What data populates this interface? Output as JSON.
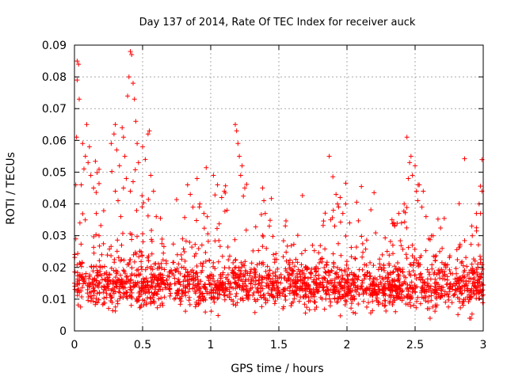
{
  "chart_data": {
    "type": "scatter",
    "title": "Day 137 of 2014, Rate Of TEC Index for receiver auck",
    "xlabel": "GPS time / hours",
    "ylabel": "ROTI / TECUs",
    "xlim": [
      0,
      3
    ],
    "ylim": [
      0,
      0.09
    ],
    "x_ticks": [
      0,
      0.5,
      1,
      1.5,
      2,
      2.5,
      3
    ],
    "x_tick_labels": [
      "0",
      "0.5",
      "1",
      "1.5",
      "2",
      "2.5",
      "3"
    ],
    "y_ticks": [
      0,
      0.01,
      0.02,
      0.03,
      0.04,
      0.05,
      0.06,
      0.07,
      0.08,
      0.09
    ],
    "y_tick_labels": [
      "0",
      "0.01",
      "0.02",
      "0.03",
      "0.04",
      "0.05",
      "0.06",
      "0.07",
      "0.08",
      "0.09"
    ],
    "grid": true,
    "marker": "plus",
    "color": "#ff0000",
    "series": [
      {
        "points": [
          [
            0.0,
            0.015
          ],
          [
            0.01,
            0.029
          ],
          [
            0.01,
            0.046
          ],
          [
            0.015,
            0.061
          ],
          [
            0.02,
            0.079
          ],
          [
            0.02,
            0.085
          ],
          [
            0.03,
            0.084
          ],
          [
            0.035,
            0.073
          ],
          [
            0.04,
            0.034
          ],
          [
            0.05,
            0.046
          ],
          [
            0.06,
            0.059
          ],
          [
            0.07,
            0.051
          ],
          [
            0.08,
            0.055
          ],
          [
            0.09,
            0.065
          ],
          [
            0.1,
            0.053
          ],
          [
            0.11,
            0.058
          ],
          [
            0.12,
            0.049
          ],
          [
            0.14,
            0.045
          ],
          [
            0.16,
            0.037
          ],
          [
            0.18,
            0.03
          ],
          [
            0.2,
            0.024
          ],
          [
            0.27,
            0.059
          ],
          [
            0.29,
            0.062
          ],
          [
            0.3,
            0.065
          ],
          [
            0.31,
            0.057
          ],
          [
            0.33,
            0.052
          ],
          [
            0.35,
            0.064
          ],
          [
            0.36,
            0.061
          ],
          [
            0.37,
            0.055
          ],
          [
            0.39,
            0.074
          ],
          [
            0.4,
            0.08
          ],
          [
            0.41,
            0.088
          ],
          [
            0.42,
            0.087
          ],
          [
            0.43,
            0.078
          ],
          [
            0.44,
            0.073
          ],
          [
            0.45,
            0.066
          ],
          [
            0.46,
            0.059
          ],
          [
            0.47,
            0.053
          ],
          [
            0.43,
            0.047
          ],
          [
            0.41,
            0.044
          ],
          [
            0.3,
            0.044
          ],
          [
            0.32,
            0.041
          ],
          [
            0.34,
            0.036
          ],
          [
            0.36,
            0.045
          ],
          [
            0.38,
            0.048
          ],
          [
            0.5,
            0.058
          ],
          [
            0.52,
            0.054
          ],
          [
            0.54,
            0.062
          ],
          [
            0.55,
            0.063
          ],
          [
            0.56,
            0.049
          ],
          [
            0.58,
            0.044
          ],
          [
            0.6,
            0.036
          ],
          [
            0.83,
            0.046
          ],
          [
            0.85,
            0.043
          ],
          [
            0.87,
            0.039
          ],
          [
            0.9,
            0.048
          ],
          [
            0.92,
            0.04
          ],
          [
            0.95,
            0.037
          ],
          [
            1.02,
            0.049
          ],
          [
            1.05,
            0.046
          ],
          [
            1.08,
            0.042
          ],
          [
            1.1,
            0.044
          ],
          [
            1.12,
            0.038
          ],
          [
            1.18,
            0.065
          ],
          [
            1.19,
            0.063
          ],
          [
            1.2,
            0.059
          ],
          [
            1.21,
            0.055
          ],
          [
            1.22,
            0.049
          ],
          [
            1.23,
            0.052
          ],
          [
            1.25,
            0.045
          ],
          [
            1.38,
            0.045
          ],
          [
            1.39,
            0.041
          ],
          [
            1.4,
            0.037
          ],
          [
            1.43,
            0.033
          ],
          [
            1.87,
            0.055
          ],
          [
            1.9,
            0.038
          ],
          [
            1.92,
            0.043
          ],
          [
            1.93,
            0.04
          ],
          [
            1.95,
            0.042
          ],
          [
            1.97,
            0.037
          ],
          [
            1.99,
            0.04
          ],
          [
            2.02,
            0.034
          ],
          [
            1.88,
            0.035
          ],
          [
            1.91,
            0.033
          ],
          [
            2.33,
            0.035
          ],
          [
            2.35,
            0.033
          ],
          [
            2.38,
            0.037
          ],
          [
            2.4,
            0.034
          ],
          [
            2.42,
            0.04
          ],
          [
            2.44,
            0.061
          ],
          [
            2.45,
            0.048
          ],
          [
            2.46,
            0.053
          ],
          [
            2.47,
            0.055
          ],
          [
            2.48,
            0.049
          ],
          [
            2.5,
            0.052
          ],
          [
            2.51,
            0.044
          ],
          [
            2.52,
            0.041
          ],
          [
            2.53,
            0.046
          ],
          [
            2.55,
            0.039
          ],
          [
            2.56,
            0.044
          ],
          [
            2.58,
            0.036
          ],
          [
            2.6,
            0.029
          ],
          [
            2.62,
            0.03
          ],
          [
            2.92,
            0.03
          ],
          [
            2.95,
            0.037
          ],
          [
            2.97,
            0.04
          ],
          [
            2.98,
            0.037
          ],
          [
            2.99,
            0.044
          ],
          [
            2.94,
            0.022
          ],
          [
            2.96,
            0.021
          ],
          [
            2.9,
            0.004
          ],
          [
            2.91,
            0.004
          ],
          [
            2.61,
            0.004
          ],
          [
            2.59,
            0.007
          ]
        ],
        "random_fill": {
          "count": 2100,
          "seed": 137
        }
      }
    ]
  }
}
